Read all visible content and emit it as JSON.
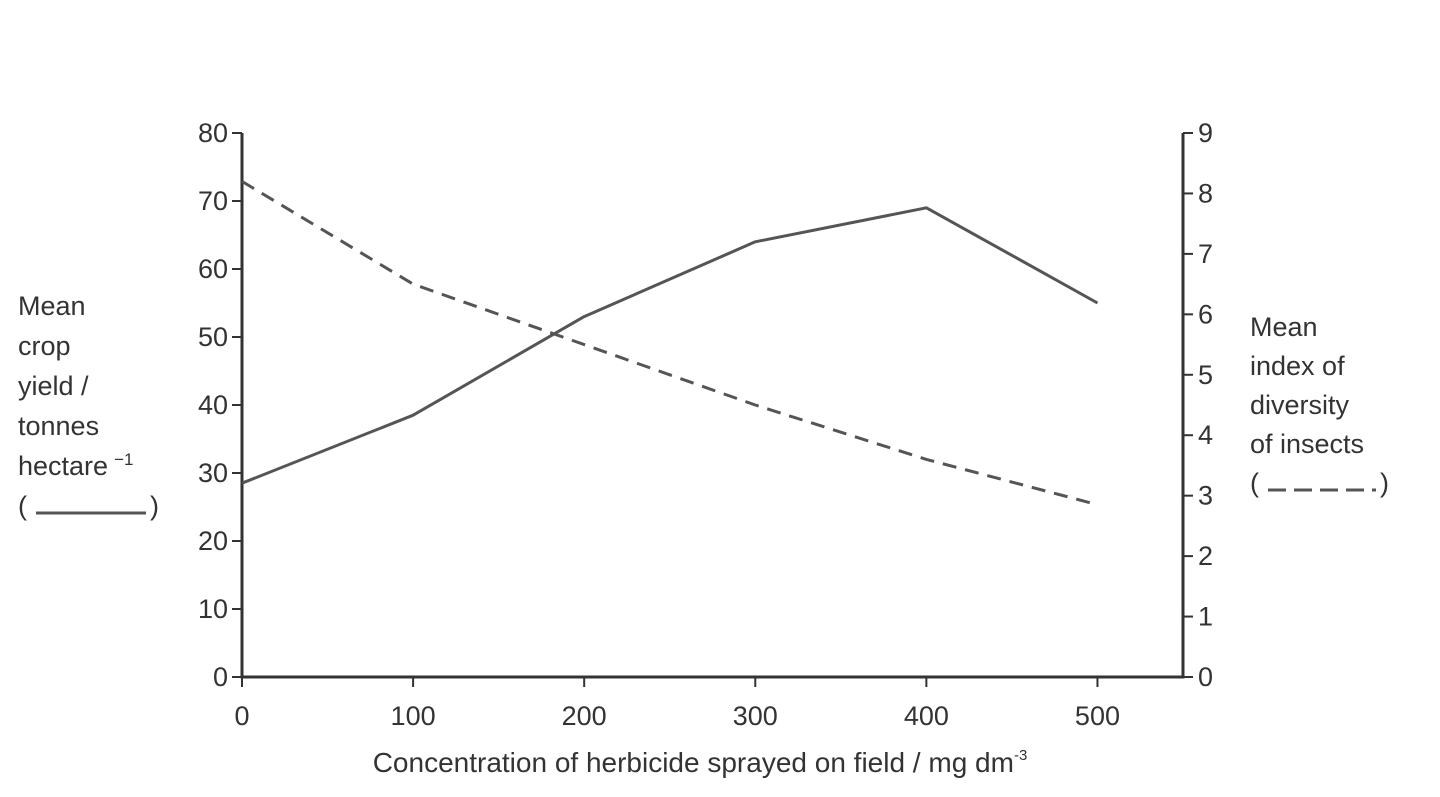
{
  "chart_data": {
    "type": "line",
    "x": [
      0,
      100,
      200,
      300,
      400,
      500
    ],
    "xticks": [
      "0",
      "100",
      "200",
      "300",
      "400",
      "500"
    ],
    "xlim": [
      0,
      550
    ],
    "xlabel": "Concentration of herbicide sprayed on field / mg dm",
    "xlabel_sup": "-3",
    "ylim_left": [
      0,
      80
    ],
    "yticks_left": [
      "0",
      "10",
      "20",
      "30",
      "40",
      "50",
      "60",
      "70",
      "80"
    ],
    "ylim_right": [
      0,
      9
    ],
    "yticks_right": [
      "0",
      "1",
      "2",
      "3",
      "4",
      "5",
      "6",
      "7",
      "8",
      "9"
    ],
    "ylabel_left_lines": [
      "Mean",
      "crop",
      "yield /",
      "tonnes",
      "hectare",
      "("
    ],
    "ylabel_left_sup": "−1",
    "ylabel_left_close": ")",
    "ylabel_right_lines": [
      "Mean",
      "index of",
      "diversity",
      "of insects",
      "("
    ],
    "ylabel_right_close": ")",
    "series": [
      {
        "axis": "left",
        "style": "solid",
        "values": [
          28.5,
          38.5,
          53,
          64,
          69,
          55
        ]
      },
      {
        "axis": "right",
        "style": "dashed",
        "values": [
          8.2,
          6.5,
          5.5,
          4.5,
          3.6,
          2.85
        ]
      }
    ],
    "grid": false,
    "colors": {
      "line": "#555555",
      "axis": "#333333"
    }
  }
}
